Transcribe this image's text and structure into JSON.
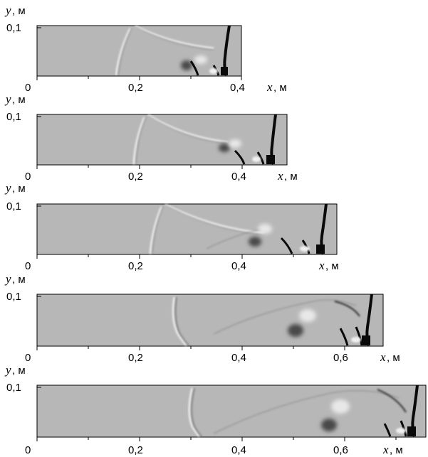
{
  "panels": [
    {
      "y_label_var": "y",
      "y_label_unit": ", м",
      "y_tick": "0,1",
      "x_ticks": [
        "0",
        "0,2",
        "0,4"
      ],
      "x_label_var": "x",
      "x_label_unit": ", м"
    },
    {
      "y_label_var": "y",
      "y_label_unit": ", м",
      "y_tick": "0,1",
      "x_ticks": [
        "0",
        "0,2",
        "0,4"
      ],
      "x_label_var": "x",
      "x_label_unit": ", м"
    },
    {
      "y_label_var": "y",
      "y_label_unit": ", м",
      "y_tick": "0,1",
      "x_ticks": [
        "0",
        "0,2",
        "0,4"
      ],
      "x_label_var": "x",
      "x_label_unit": ", м"
    },
    {
      "y_label_var": "y",
      "y_label_unit": ", м",
      "y_tick": "0,1",
      "x_ticks": [
        "0",
        "0,2",
        "0,4",
        "0,6"
      ],
      "x_label_var": "x",
      "x_label_unit": ", м"
    },
    {
      "y_label_var": "y",
      "y_label_unit": ", м",
      "y_tick": "0,1",
      "x_ticks": [
        "0",
        "0,2",
        "0,4",
        "0,6"
      ],
      "x_label_var": "x",
      "x_label_unit": ", м"
    }
  ],
  "colors": {
    "field": "#b7b7b7",
    "frame": "#000000",
    "shock": "#0a0a0a",
    "wave_light": "#efefef",
    "wave_dark": "#6a6a6a"
  }
}
